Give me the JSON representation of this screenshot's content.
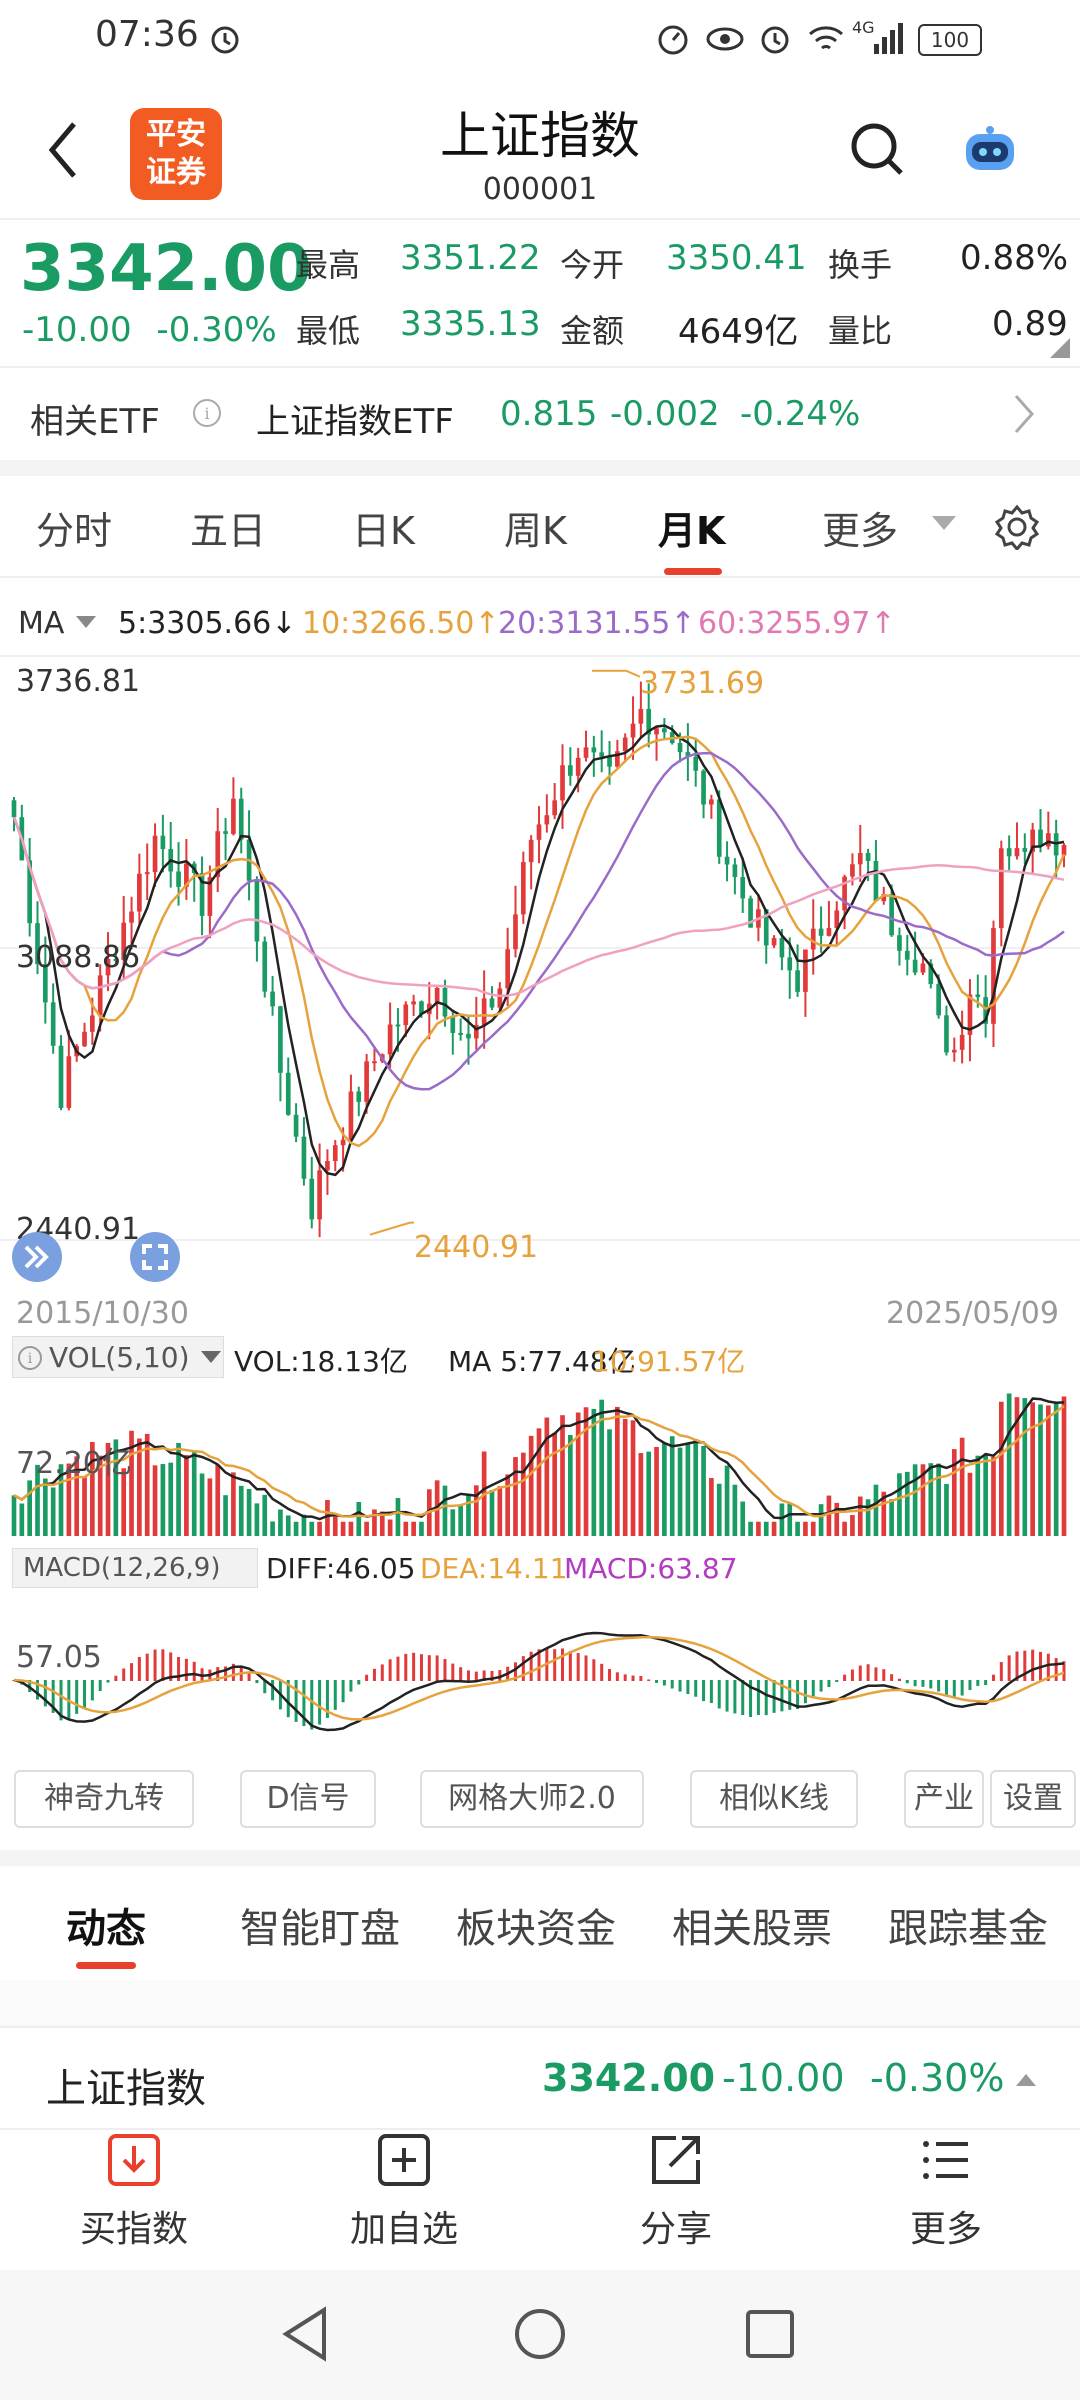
{
  "status": {
    "time": "07:36",
    "battery": "100",
    "network": "4G"
  },
  "header": {
    "title": "上证指数",
    "code": "000001",
    "logo_line1": "平安",
    "logo_line2": "证券"
  },
  "quote": {
    "price": "3342.00",
    "change": "-10.00",
    "change_pct": "-0.30%",
    "high_label": "最高",
    "high": "3351.22",
    "low_label": "最低",
    "low": "3335.13",
    "open_label": "今开",
    "open": "3350.41",
    "amount_label": "金额",
    "amount": "4649亿",
    "turnover_label": "换手",
    "turnover": "0.88%",
    "ratio_label": "量比",
    "ratio": "0.89"
  },
  "etf": {
    "label": "相关ETF",
    "name": "上证指数ETF",
    "price": "0.815",
    "change": "-0.002",
    "pct": "-0.24%"
  },
  "ktabs": [
    "分时",
    "五日",
    "日K",
    "周K",
    "月K",
    "更多"
  ],
  "ma_legend": {
    "label": "MA",
    "ma5": "5:3305.66↓",
    "ma10": "10:3266.50↑",
    "ma20": "20:3131.55↑",
    "ma60": "60:3255.97↑"
  },
  "chart": {
    "max_label": "3736.81",
    "mid_label": "3088.86",
    "min_label": "2440.91",
    "peak_annot": "3731.69",
    "trough_annot": "2440.91",
    "start_date": "2015/10/30",
    "end_date": "2025/05/09"
  },
  "vol": {
    "selector": "VOL(5,10)",
    "vol": "VOL:18.13亿",
    "ma5": "MA 5:77.48亿",
    "ma10": "10:91.57亿",
    "axis": "72.20亿"
  },
  "macd": {
    "selector": "MACD(12,26,9)",
    "diff": "DIFF:46.05",
    "dea": "DEA:14.11",
    "macd": "MACD:63.87",
    "axis": "57.05"
  },
  "chips": [
    "神奇九转",
    "D信号",
    "网格大师2.0",
    "相似K线",
    "产业",
    "设置"
  ],
  "news_tabs": [
    "动态",
    "智能盯盘",
    "板块资金",
    "相关股票",
    "跟踪基金"
  ],
  "bottom_quote": {
    "name": "上证指数",
    "price": "3342.00",
    "change": "-10.00",
    "pct": "-0.30%"
  },
  "bottom_nav": [
    "买指数",
    "加自选",
    "分享",
    "更多"
  ],
  "colors": {
    "up": "#e03a3a",
    "down": "#1a9b63",
    "ma5": "#222222",
    "ma10": "#e6a23c",
    "ma20": "#9b6bc9",
    "ma60": "#f0a0c0",
    "accent": "#e8402c"
  },
  "chart_data": {
    "type": "candlestick",
    "x_range": [
      "2015/10/30",
      "2025/05/09"
    ],
    "y_range": [
      2440.91,
      3736.81
    ],
    "annotations": [
      {
        "label": "3731.69"
      },
      {
        "label": "2440.91"
      }
    ],
    "series": [
      {
        "name": "MA5",
        "last": 3305.66
      },
      {
        "name": "MA10",
        "last": 3266.5
      },
      {
        "name": "MA20",
        "last": 3131.55
      },
      {
        "name": "MA60",
        "last": 3255.97
      }
    ]
  }
}
